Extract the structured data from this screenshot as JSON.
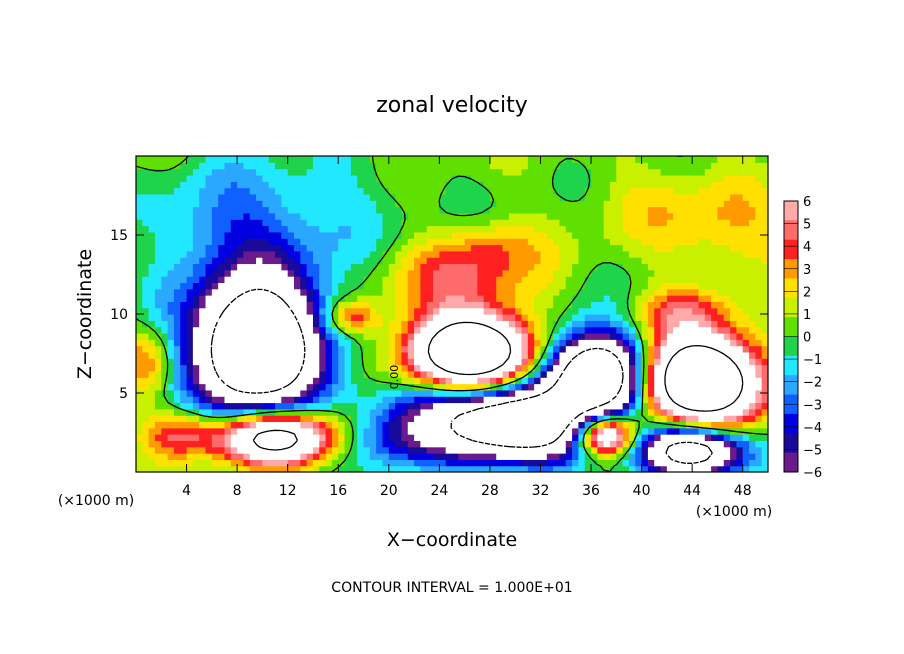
{
  "chart_data": {
    "type": "heatmap",
    "title": "zonal velocity",
    "xlabel": "X−coordinate",
    "ylabel": "Z−coordinate",
    "x_units_left": "(×1000 m)",
    "x_units_right": "(×1000 m)",
    "xlim": [
      0,
      50
    ],
    "ylim": [
      0,
      20
    ],
    "x_ticks": [
      4,
      8,
      12,
      16,
      20,
      24,
      28,
      32,
      36,
      40,
      44,
      48
    ],
    "y_ticks": [
      5,
      10,
      15
    ],
    "contour_label": "0.00",
    "footer": "CONTOUR INTERVAL = 1.000E+01",
    "colorbar": {
      "min": -6,
      "max": 6,
      "labels": [
        "6",
        "5",
        "4",
        "3",
        "2",
        "1",
        "0",
        "−1",
        "−2",
        "−3",
        "−4",
        "−5",
        "−6"
      ],
      "colors": [
        "#6a1a8a",
        "#1a0a9a",
        "#0000e0",
        "#1060ff",
        "#2aa8ff",
        "#22e8ff",
        "#1fd44a",
        "#5fe000",
        "#c8f000",
        "#ffe000",
        "#ff9a00",
        "#ff2020",
        "#ff6a6a",
        "#ffaaaa"
      ]
    },
    "field": {
      "background": 0.4,
      "features": [
        {
          "x": 10,
          "z": 13,
          "rx": 7,
          "rz": 6,
          "v": -2.6
        },
        {
          "x": 6,
          "z": 16,
          "rx": 5,
          "rz": 3,
          "v": -1.5
        },
        {
          "x": 9.5,
          "z": 7.8,
          "rx": 4.2,
          "rz": 3.6,
          "v": -14
        },
        {
          "x": 9.5,
          "z": 7.8,
          "rx": 5.8,
          "rz": 5.0,
          "v": -4.5
        },
        {
          "x": 11,
          "z": 2.2,
          "rx": 4.5,
          "rz": 1.7,
          "v": 13
        },
        {
          "x": 3.5,
          "z": 2.5,
          "rx": 3,
          "rz": 1.5,
          "v": 4
        },
        {
          "x": 20,
          "z": 2.0,
          "rx": 3.5,
          "rz": 2.0,
          "v": -3
        },
        {
          "x": 17,
          "z": 9.8,
          "rx": 2,
          "rz": 1,
          "v": 4
        },
        {
          "x": 26,
          "z": 12.5,
          "rx": 6,
          "rz": 2.5,
          "v": 3.4
        },
        {
          "x": 28,
          "z": 14.5,
          "rx": 3,
          "rz": 1.5,
          "v": 1.5
        },
        {
          "x": 26.5,
          "z": 7.6,
          "rx": 4.5,
          "rz": 2.2,
          "v": 14
        },
        {
          "x": 26.5,
          "z": 7.6,
          "rx": 6.2,
          "rz": 3.2,
          "v": 3
        },
        {
          "x": 26.5,
          "z": 4.5,
          "rx": 8,
          "rz": 1.8,
          "v": -4
        },
        {
          "x": 30,
          "z": 2.8,
          "rx": 7,
          "rz": 2.2,
          "v": -14
        },
        {
          "x": 36.5,
          "z": 6.2,
          "rx": 3.5,
          "rz": 2.3,
          "v": -14
        },
        {
          "x": 36,
          "z": 6.5,
          "rx": 5,
          "rz": 3.5,
          "v": -4
        },
        {
          "x": 37,
          "z": 2.4,
          "rx": 2.4,
          "rz": 1.3,
          "v": 13
        },
        {
          "x": 44.5,
          "z": 5.8,
          "rx": 4.5,
          "rz": 2.6,
          "v": 14
        },
        {
          "x": 44.5,
          "z": 5.8,
          "rx": 5.8,
          "rz": 3.4,
          "v": 3.5
        },
        {
          "x": 44,
          "z": 1.4,
          "rx": 4,
          "rz": 1.6,
          "v": -14
        },
        {
          "x": 43,
          "z": 10.2,
          "rx": 3.5,
          "rz": 1.5,
          "v": 3
        },
        {
          "x": 47,
          "z": 15,
          "rx": 5,
          "rz": 3,
          "v": 1.8
        },
        {
          "x": 42,
          "z": 17,
          "rx": 6,
          "rz": 3,
          "v": 1.2
        },
        {
          "x": 16,
          "z": 17,
          "rx": 8,
          "rz": 3,
          "v": -1.0
        },
        {
          "x": 1,
          "z": 7,
          "rx": 2,
          "rz": 2,
          "v": 3
        }
      ]
    }
  }
}
